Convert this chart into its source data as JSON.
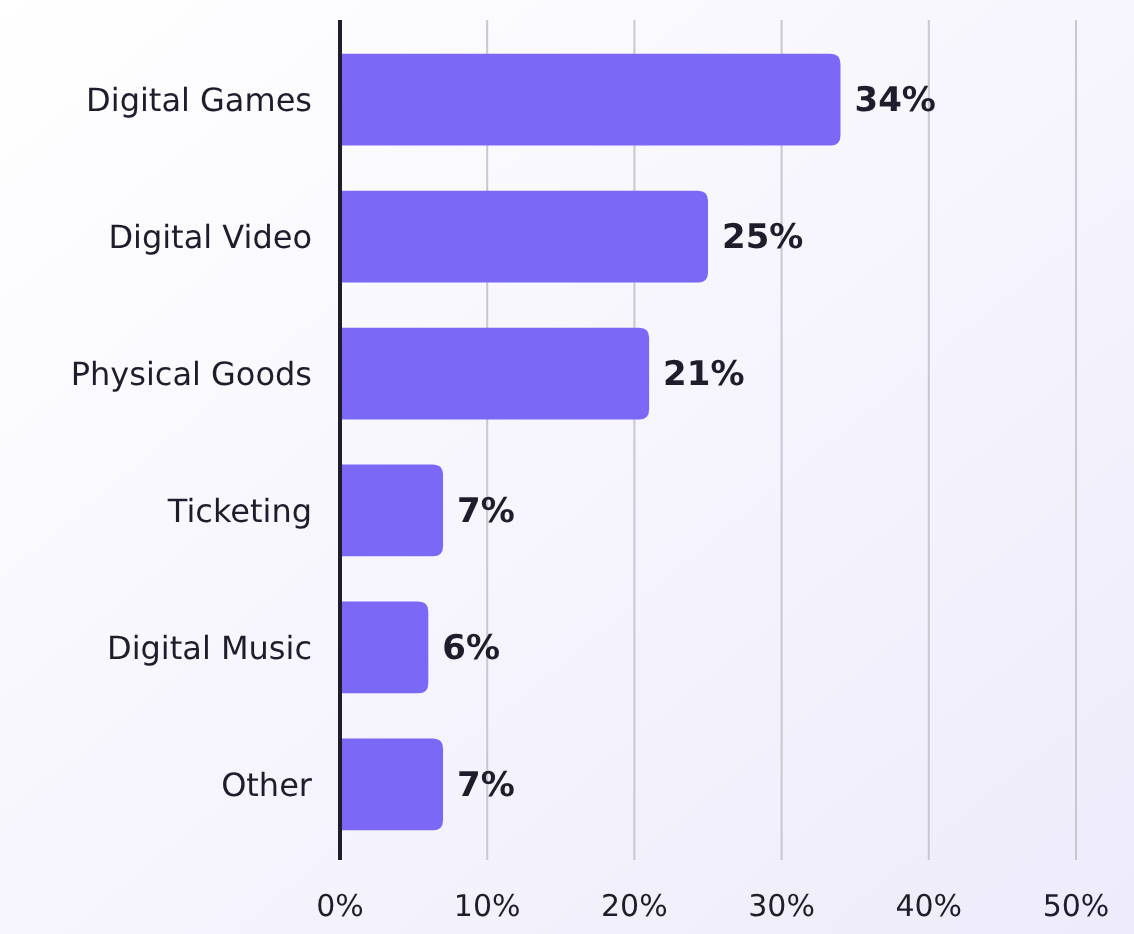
{
  "chart_data": {
    "type": "bar",
    "orientation": "horizontal",
    "categories": [
      "Digital Games",
      "Digital Video",
      "Physical Goods",
      "Ticketing",
      "Digital Music",
      "Other"
    ],
    "values": [
      34,
      25,
      21,
      7,
      6,
      7
    ],
    "color": "#7b68f7",
    "value_labels": [
      "34%",
      "25%",
      "21%",
      "7%",
      "6%",
      "7%"
    ],
    "xlim": [
      0,
      50
    ],
    "xticks": [
      {
        "value": 0,
        "label": "0%"
      },
      {
        "value": 10,
        "label": "10%"
      },
      {
        "value": 20,
        "label": "20%"
      },
      {
        "value": 30,
        "label": "30%"
      },
      {
        "value": 40,
        "label": "40%"
      },
      {
        "value": 50,
        "label": "50%"
      }
    ],
    "grid": "x"
  }
}
